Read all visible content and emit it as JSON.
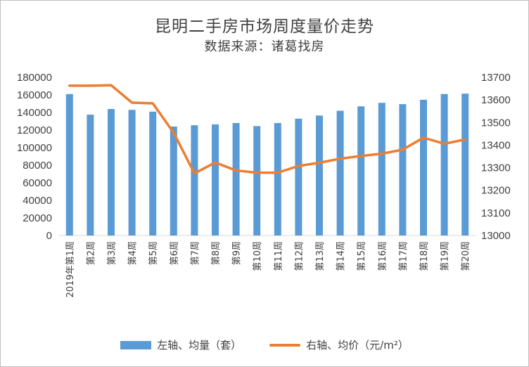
{
  "chart_data": {
    "type": "bar+line",
    "title": "昆明二手房市场周度量价走势",
    "subtitle": "数据来源：诸葛找房",
    "categories": [
      "2019年第1周",
      "第2周",
      "第3周",
      "第4周",
      "第5周",
      "第6周",
      "第7周",
      "第8周",
      "第9周",
      "第10周",
      "第11周",
      "第12周",
      "第13周",
      "第14周",
      "第15周",
      "第16周",
      "第17周",
      "第18周",
      "第19周",
      "第20周"
    ],
    "series": [
      {
        "name": "左轴、均量（套）",
        "type": "bar",
        "axis": "left",
        "color": "#5b9bd5",
        "values": [
          161000,
          137500,
          144000,
          143000,
          141000,
          124000,
          125500,
          126500,
          128000,
          124500,
          128000,
          133000,
          136500,
          142000,
          147000,
          151000,
          149500,
          154500,
          161000,
          161500
        ]
      },
      {
        "name": "右轴、均价（元/m²）",
        "type": "line",
        "axis": "right",
        "color": "#ed7d31",
        "values": [
          13663,
          13663,
          13665,
          13588,
          13585,
          13455,
          13275,
          13323,
          13288,
          13278,
          13278,
          13308,
          13322,
          13340,
          13352,
          13362,
          13380,
          13433,
          13406,
          13425
        ]
      }
    ],
    "y_left": {
      "min": 0,
      "max": 180000,
      "step": 20000,
      "ticks": [
        "0",
        "20000",
        "40000",
        "60000",
        "80000",
        "100000",
        "120000",
        "140000",
        "160000",
        "180000"
      ]
    },
    "y_right": {
      "min": 13000,
      "max": 13700,
      "step": 100,
      "ticks": [
        "13000",
        "13100",
        "13200",
        "13300",
        "13400",
        "13500",
        "13600",
        "13700"
      ]
    },
    "legend_position": "bottom",
    "grid": false
  }
}
